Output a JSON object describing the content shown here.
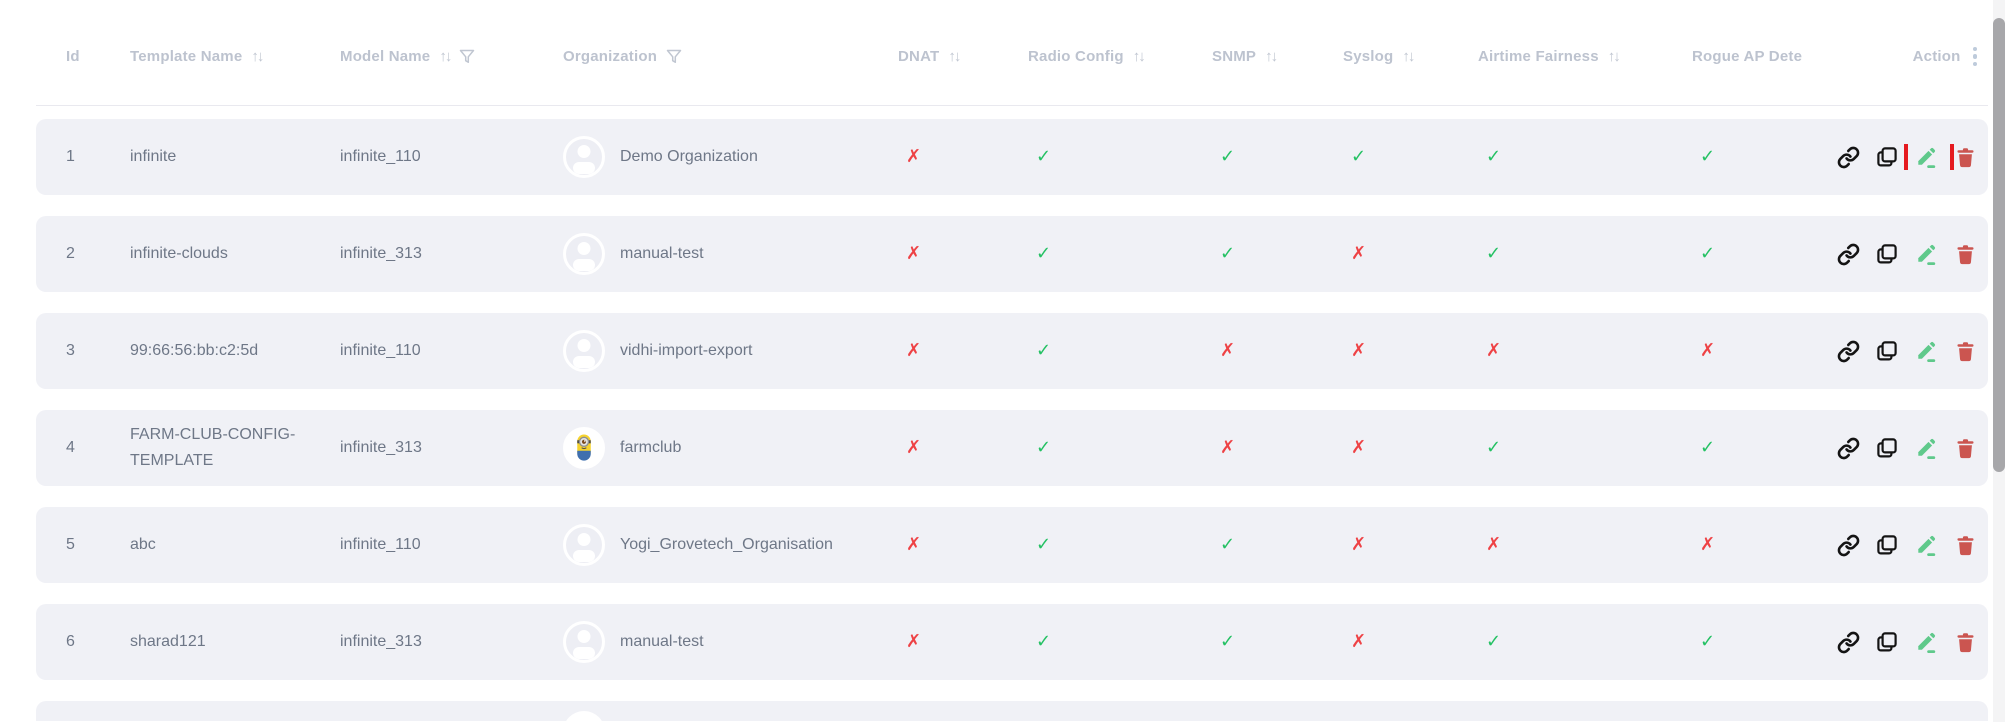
{
  "table": {
    "columns": [
      {
        "label": "Id"
      },
      {
        "label": "Template Name",
        "sort": true
      },
      {
        "label": "Model Name",
        "sort": true,
        "filter": true
      },
      {
        "label": "Organization",
        "filter": true
      },
      {
        "label": "DNAT",
        "sort": true
      },
      {
        "label": "Radio Config",
        "sort": true
      },
      {
        "label": "SNMP",
        "sort": true
      },
      {
        "label": "Syslog",
        "sort": true
      },
      {
        "label": "Airtime Fairness",
        "sort": true
      },
      {
        "label": "Rogue AP Dete"
      },
      {
        "label": "Action",
        "menu": true
      }
    ],
    "rows": [
      {
        "id": "1",
        "template_name": "infinite",
        "model_name": "infinite_110",
        "organization": "Demo Organization",
        "avatar": "person",
        "dnat": false,
        "radio_config": true,
        "snmp": true,
        "syslog": true,
        "airtime_fairness": true,
        "rogue_ap": true,
        "action_highlight": "edit"
      },
      {
        "id": "2",
        "template_name": "infinite-clouds",
        "model_name": "infinite_313",
        "organization": "manual-test",
        "avatar": "person",
        "dnat": false,
        "radio_config": true,
        "snmp": true,
        "syslog": false,
        "airtime_fairness": true,
        "rogue_ap": true
      },
      {
        "id": "3",
        "template_name": "99:66:56:bb:c2:5d",
        "model_name": "infinite_110",
        "organization": "vidhi-import-export",
        "avatar": "person",
        "dnat": false,
        "radio_config": true,
        "snmp": false,
        "syslog": false,
        "airtime_fairness": false,
        "rogue_ap": false
      },
      {
        "id": "4",
        "template_name": "FARM-CLUB-CONFIG-TEMPLATE",
        "model_name": "infinite_313",
        "organization": "farmclub",
        "avatar": "minion",
        "dnat": false,
        "radio_config": true,
        "snmp": false,
        "syslog": false,
        "airtime_fairness": true,
        "rogue_ap": true
      },
      {
        "id": "5",
        "template_name": "abc",
        "model_name": "infinite_110",
        "organization": "Yogi_Grovetech_Organisation",
        "avatar": "person",
        "dnat": false,
        "radio_config": true,
        "snmp": true,
        "syslog": false,
        "airtime_fairness": false,
        "rogue_ap": false
      },
      {
        "id": "6",
        "template_name": "sharad121",
        "model_name": "infinite_313",
        "organization": "manual-test",
        "avatar": "person",
        "dnat": false,
        "radio_config": true,
        "snmp": true,
        "syslog": false,
        "airtime_fairness": true,
        "rogue_ap": true
      }
    ],
    "actions": [
      {
        "name": "link"
      },
      {
        "name": "copy"
      },
      {
        "name": "edit"
      },
      {
        "name": "delete"
      }
    ]
  },
  "icons": {
    "check_glyph": "✓",
    "cross_glyph": "✗",
    "sort_glyph": "↑↓"
  },
  "colors": {
    "row_background": "#f0f1f6",
    "header_text": "#bdc3cf",
    "cell_text": "#6e7787",
    "check_green": "#24c163",
    "cross_red": "#ee4245",
    "edit_green": "#5fc98b",
    "delete_red": "#cb5550",
    "highlight_box_red": "#e51a1f",
    "icon_dark": "#141414",
    "scrollbar_thumb": "#a7a7aa"
  }
}
